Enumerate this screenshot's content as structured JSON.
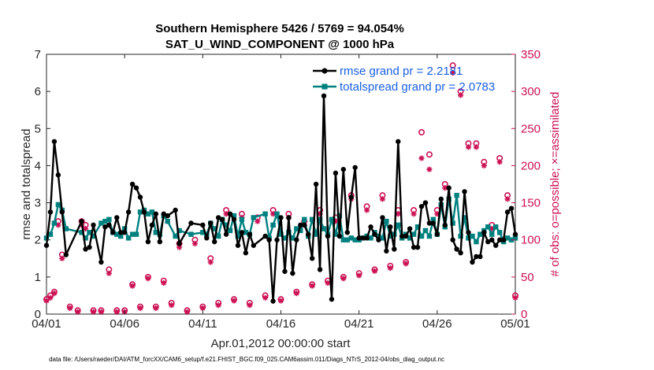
{
  "chart_data": {
    "type": "line",
    "title": "Southern Hemisphere 5426 / 5769 = 94.054%",
    "subtitle": "SAT_U_WIND_COMPONENT @ 1000 hPa",
    "xlabel": "Apr.01,2012 00:00:00 start",
    "ylabel": "rmse and totalspread",
    "y2label": "# of obs: o=possible; ×=assimilated",
    "xlim": [
      0,
      30
    ],
    "ylim": [
      0,
      7
    ],
    "y2lim": [
      0,
      350
    ],
    "x_ticks": [
      0,
      5,
      10,
      15,
      20,
      25,
      30
    ],
    "x_tick_labels": [
      "04/01",
      "04/06",
      "04/11",
      "04/16",
      "04/21",
      "04/26",
      "05/01"
    ],
    "y_ticks": [
      "0",
      "1",
      "2",
      "3",
      "4",
      "5",
      "6",
      "7"
    ],
    "y2_ticks": [
      "0",
      "50",
      "100",
      "150",
      "200",
      "250",
      "300",
      "350"
    ],
    "grid": false,
    "legend_position": "top-right",
    "colors": {
      "rmse": "#000000",
      "totalspread": "#00807f",
      "obs": "#cc1155",
      "legend_text": "#1a5fe0"
    },
    "series": [
      {
        "name": "rmse grand pr = 2.2181",
        "axis": "left",
        "x": [
          0,
          0.25,
          0.5,
          0.75,
          1.0,
          1.25,
          2.25,
          2.5,
          2.75,
          3.0,
          3.5,
          3.75,
          4.0,
          4.25,
          4.5,
          4.75,
          5.0,
          5.25,
          5.5,
          5.75,
          6.0,
          6.25,
          6.5,
          6.75,
          7.0,
          7.25,
          7.5,
          7.75,
          8.25,
          8.5,
          9.25,
          10.0,
          10.25,
          10.5,
          10.75,
          11.0,
          11.25,
          11.5,
          11.75,
          12.0,
          12.25,
          12.5,
          12.75,
          13.0,
          13.25,
          14.0,
          14.25,
          14.5,
          14.75,
          15.0,
          15.25,
          15.5,
          15.75,
          16.0,
          16.25,
          16.5,
          16.75,
          17.0,
          17.25,
          17.5,
          17.75,
          18.0,
          18.25,
          18.5,
          18.75,
          19.0,
          19.25,
          19.5,
          19.75,
          20.0,
          20.25,
          20.5,
          20.75,
          21.0,
          21.25,
          21.5,
          21.75,
          22.0,
          22.25,
          22.5,
          22.75,
          23.0,
          23.25,
          23.5,
          23.75,
          24.0,
          24.25,
          24.5,
          24.75,
          25.0,
          25.25,
          25.5,
          25.75,
          26.0,
          26.25,
          26.5,
          26.75,
          27.0,
          27.25,
          27.5,
          27.75,
          28.0,
          28.25,
          28.5,
          28.75,
          29.0,
          29.25,
          29.5,
          29.75,
          30.0
        ],
        "y": [
          1.85,
          2.75,
          4.65,
          3.75,
          2.75,
          1.6,
          2.5,
          1.75,
          1.8,
          2.4,
          1.4,
          2.35,
          2.4,
          2.2,
          2.6,
          2.2,
          2.2,
          2.75,
          3.5,
          3.4,
          3.15,
          2.75,
          1.95,
          2.4,
          2.7,
          1.95,
          2.7,
          2.65,
          2.8,
          1.9,
          2.45,
          2.4,
          2.05,
          2.45,
          1.95,
          2.6,
          2.55,
          2.15,
          2.7,
          2.55,
          1.85,
          2.2,
          1.65,
          2.15,
          1.85,
          2.1,
          2.0,
          0.35,
          2.0,
          2.6,
          1.15,
          2.6,
          1.1,
          2.0,
          2.4,
          2.4,
          2.15,
          1.5,
          3.5,
          1.2,
          5.88,
          2.1,
          0.4,
          3.8,
          2.1,
          3.9,
          2.2,
          3.15,
          3.95,
          2.05,
          2.05,
          2.05,
          2.35,
          2.15,
          2.0,
          2.6,
          1.7,
          2.35,
          1.75,
          4.65,
          2.1,
          2.1,
          2.3,
          1.8,
          1.8,
          2.9,
          3.0,
          2.45,
          2.45,
          2.15,
          3.1,
          2.4,
          3.4,
          2.0,
          1.75,
          1.65,
          3.3,
          2.2,
          1.4,
          1.55,
          1.55,
          2.2,
          1.95,
          2.0,
          1.85,
          2.0,
          2.0,
          2.75,
          2.85,
          2.15
        ]
      },
      {
        "name": "totalspread grand pr = 2.0783",
        "axis": "left",
        "x": [
          0,
          0.25,
          0.5,
          0.75,
          1.0,
          1.25,
          2.25,
          2.5,
          2.75,
          3.0,
          3.5,
          3.75,
          4.0,
          4.25,
          4.5,
          4.75,
          5.0,
          5.25,
          5.5,
          5.75,
          6.0,
          6.25,
          6.5,
          6.75,
          7.0,
          7.25,
          7.5,
          7.75,
          8.25,
          8.5,
          9.25,
          10.0,
          10.25,
          10.5,
          10.75,
          11.0,
          11.25,
          11.5,
          11.75,
          12.0,
          12.25,
          12.5,
          12.75,
          13.0,
          13.25,
          14.0,
          14.25,
          14.5,
          14.75,
          15.0,
          15.25,
          15.5,
          15.75,
          16.0,
          16.25,
          16.5,
          16.75,
          17.0,
          17.25,
          17.5,
          17.75,
          18.0,
          18.25,
          18.5,
          18.75,
          19.0,
          19.25,
          19.5,
          19.75,
          20.0,
          20.25,
          20.5,
          20.75,
          21.0,
          21.25,
          21.5,
          21.75,
          22.0,
          22.25,
          22.5,
          22.75,
          23.0,
          23.25,
          23.5,
          23.75,
          24.0,
          24.25,
          24.5,
          24.75,
          25.0,
          25.25,
          25.5,
          25.75,
          26.0,
          26.25,
          26.5,
          26.75,
          27.0,
          27.25,
          27.5,
          27.75,
          28.0,
          28.25,
          28.5,
          28.75,
          29.0,
          29.25,
          29.5,
          29.75,
          30.0
        ],
        "y": [
          2.05,
          2.15,
          2.45,
          2.95,
          2.8,
          2.3,
          2.2,
          2.05,
          2.2,
          2.1,
          2.45,
          2.5,
          2.55,
          2.2,
          2.15,
          2.1,
          2.3,
          2.05,
          2.15,
          2.15,
          2.75,
          2.8,
          2.7,
          2.75,
          2.2,
          2.15,
          2.65,
          2.5,
          2.1,
          2.25,
          2.15,
          2.2,
          2.15,
          2.45,
          2.3,
          2.1,
          2.55,
          2.4,
          2.25,
          2.65,
          2.1,
          2.55,
          2.2,
          2.15,
          2.6,
          2.7,
          2.05,
          2.4,
          2.7,
          2.15,
          2.05,
          2.2,
          2.05,
          2.3,
          2.25,
          2.55,
          2.1,
          2.55,
          2.15,
          2.55,
          2.3,
          2.15,
          2.55,
          2.15,
          2.65,
          2.0,
          2.0,
          2.05,
          2.0,
          2.0,
          2.05,
          2.1,
          2.05,
          2.2,
          2.1,
          2.05,
          2.5,
          2.1,
          2.15,
          2.4,
          2.05,
          2.15,
          2.05,
          2.15,
          2.35,
          2.1,
          2.25,
          2.1,
          2.55,
          2.15,
          2.95,
          2.35,
          3.1,
          2.45,
          3.2,
          2.1,
          2.6,
          2.05,
          2.1,
          1.95,
          2.15,
          2.25,
          2.35,
          2.15,
          2.35,
          2.2,
          1.95,
          2.05,
          2.0,
          2.05
        ]
      },
      {
        "name": "possible",
        "axis": "right",
        "marker": "circle",
        "x": [
          0,
          0.25,
          0.5,
          0.75,
          1.0,
          1.5,
          2.0,
          2.25,
          2.5,
          3.0,
          3.5,
          4.0,
          4.5,
          5.0,
          5.5,
          6.0,
          6.5,
          7.0,
          7.5,
          8.0,
          8.5,
          9.0,
          9.5,
          10.0,
          10.5,
          11.0,
          11.5,
          12.0,
          12.5,
          13.0,
          13.5,
          14.0,
          14.5,
          15.0,
          15.5,
          16.0,
          16.5,
          17.0,
          17.5,
          18.0,
          18.5,
          19.0,
          19.5,
          20.0,
          20.5,
          21.0,
          21.5,
          22.0,
          22.5,
          23.0,
          23.5,
          24.0,
          24.5,
          25.0,
          25.5,
          26.0,
          26.5,
          27.0,
          27.5,
          28.0,
          28.5,
          29.0,
          29.5,
          30.0
        ],
        "y": [
          20,
          25,
          30,
          125,
          80,
          10,
          5,
          125,
          120,
          5,
          5,
          60,
          5,
          5,
          40,
          10,
          50,
          10,
          45,
          15,
          95,
          5,
          100,
          10,
          75,
          15,
          140,
          20,
          135,
          15,
          130,
          25,
          140,
          20,
          135,
          30,
          125,
          40,
          140,
          45,
          130,
          50,
          160,
          55,
          145,
          60,
          160,
          65,
          140,
          70,
          140,
          245,
          215,
          140,
          175,
          335,
          300,
          230,
          230,
          205,
          120,
          210,
          160,
          25
        ]
      },
      {
        "name": "assimilated",
        "axis": "right",
        "marker": "asterisk",
        "x": [
          0,
          0.25,
          0.5,
          0.75,
          1.0,
          1.5,
          2.0,
          2.25,
          2.5,
          3.0,
          3.5,
          4.0,
          4.5,
          5.0,
          5.5,
          6.0,
          6.5,
          7.0,
          7.5,
          8.0,
          8.5,
          9.0,
          9.5,
          10.0,
          10.5,
          11.0,
          11.5,
          12.0,
          12.5,
          13.0,
          13.5,
          14.0,
          14.5,
          15.0,
          15.5,
          16.0,
          16.5,
          17.0,
          17.5,
          18.0,
          18.5,
          19.0,
          19.5,
          20.0,
          20.5,
          21.0,
          21.5,
          22.0,
          22.5,
          23.0,
          23.5,
          24.0,
          24.5,
          25.0,
          25.5,
          26.0,
          26.5,
          27.0,
          27.5,
          28.0,
          28.5,
          29.0,
          29.5,
          30.0
        ],
        "y": [
          18,
          22,
          28,
          120,
          75,
          8,
          3,
          120,
          115,
          3,
          3,
          55,
          3,
          3,
          38,
          8,
          48,
          8,
          42,
          12,
          90,
          3,
          95,
          8,
          70,
          12,
          135,
          18,
          130,
          12,
          125,
          22,
          135,
          18,
          130,
          28,
          120,
          38,
          135,
          42,
          125,
          48,
          155,
          52,
          140,
          58,
          155,
          62,
          135,
          68,
          135,
          210,
          195,
          135,
          170,
          325,
          295,
          225,
          225,
          200,
          115,
          205,
          155,
          22
        ]
      }
    ],
    "footer": "data file: /Users/raeder/DAI/ATM_forcXX/CAM6_setup/f.e21.FHIST_BGC.f09_025.CAM6assim.011/Diags_NTrS_2012-04/obs_diag_output.nc"
  }
}
